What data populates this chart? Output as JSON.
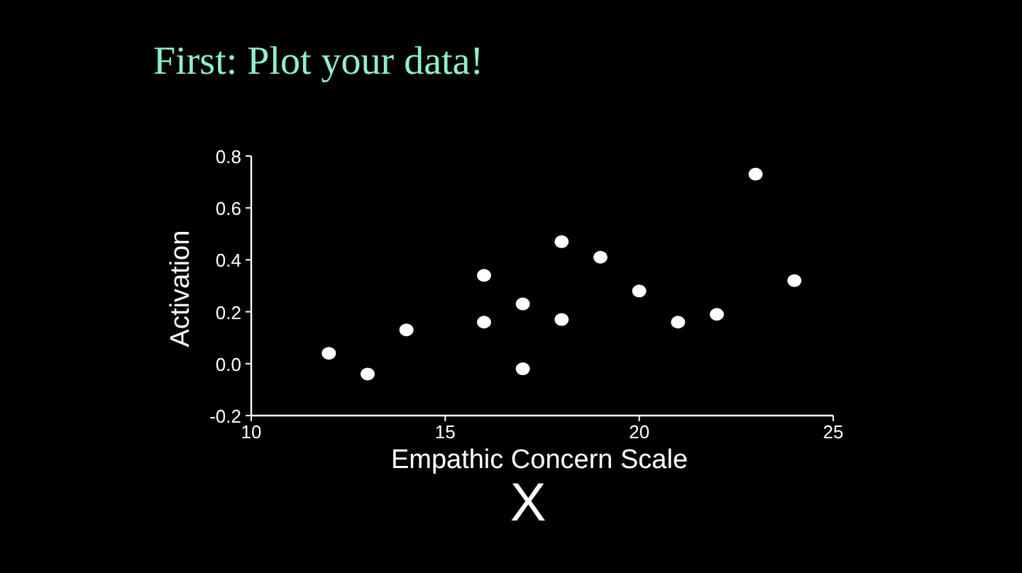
{
  "chart_data": {
    "type": "scatter",
    "title": "First: Plot your data!",
    "xlabel": "Empathic Concern Scale",
    "ylabel": "Activation",
    "x": [
      12,
      13,
      14,
      16,
      16,
      17,
      17,
      18,
      18,
      19,
      20,
      21,
      22,
      23,
      24
    ],
    "values": [
      0.04,
      -0.04,
      0.13,
      0.34,
      0.16,
      0.23,
      -0.02,
      0.47,
      0.17,
      0.41,
      0.28,
      0.16,
      0.19,
      0.73,
      0.32
    ],
    "color": "#ffffff",
    "marker": "circle",
    "xlim": [
      10,
      25
    ],
    "xticks": [
      10,
      15,
      20,
      25
    ],
    "ylim": [
      -0.2,
      0.8
    ],
    "yticks": [
      {
        "value": -0.2,
        "label": "-0.2"
      },
      {
        "value": 0,
        "label": "0.0"
      },
      {
        "value": 0.2,
        "label": "0.2"
      },
      {
        "value": 0.4,
        "label": "0.4"
      },
      {
        "value": 0.6,
        "label": "0.6"
      },
      {
        "value": 0.8,
        "label": "0.8"
      }
    ],
    "grid": false,
    "annotations": [
      "X"
    ]
  }
}
